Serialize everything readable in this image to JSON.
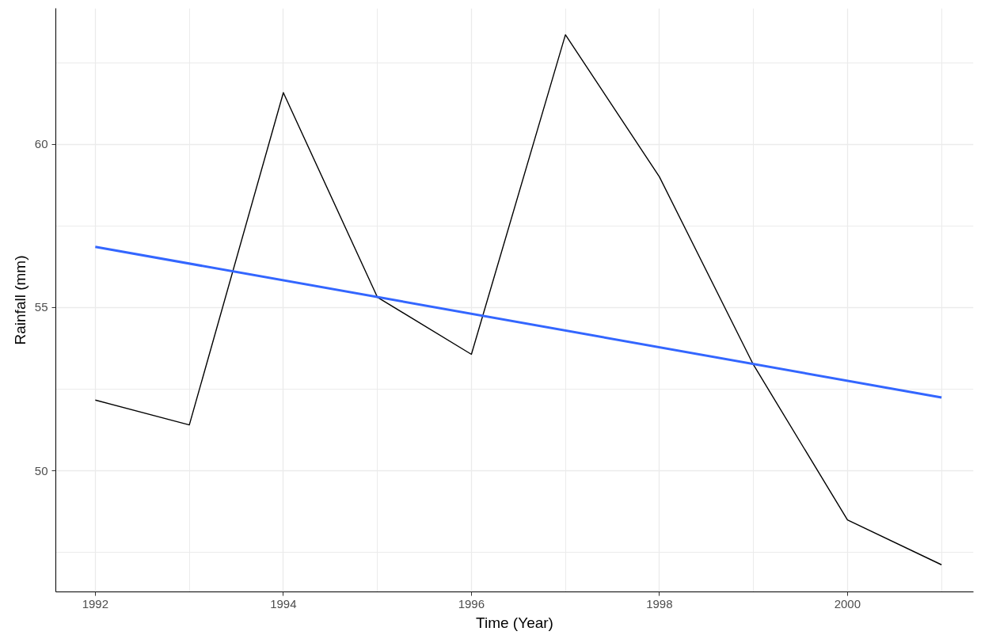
{
  "chart_data": {
    "type": "line",
    "xlabel": "Time (Year)",
    "ylabel": "Rainfall (mm)",
    "x": [
      1992,
      1993,
      1994,
      1995,
      1996,
      1997,
      1998,
      1999,
      2000,
      2001
    ],
    "series": [
      {
        "color": "#000000",
        "values": [
          52.17,
          51.41,
          61.58,
          55.32,
          53.57,
          63.35,
          59.0,
          53.25,
          48.5,
          47.13
        ]
      },
      {
        "color": "#3366ff",
        "x": [
          1992,
          2001
        ],
        "values": [
          56.86,
          52.25
        ]
      }
    ],
    "xlim": [
      1991.58,
      2001.34
    ],
    "ylim": [
      46.3,
      64.16
    ],
    "xticks": [
      1992,
      1994,
      1996,
      1998,
      2000
    ],
    "yticks": [
      50,
      55,
      60
    ],
    "grid": true,
    "marker": "none",
    "line_style": "solid"
  }
}
